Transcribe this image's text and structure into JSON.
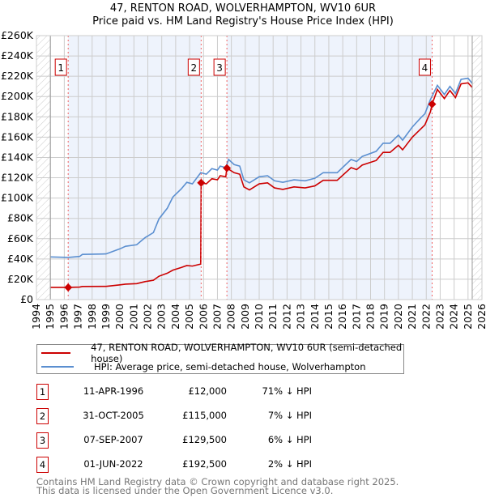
{
  "title": "47, RENTON ROAD, WOLVERHAMPTON, WV10 6UR",
  "subtitle": "Price paid vs. HM Land Registry's House Price Index (HPI)",
  "colors": {
    "price": "#cc0000",
    "hpi": "#5b8fd0",
    "band": "#eef3fc",
    "grid": "#cccccc",
    "marker": "#cc0000"
  },
  "legend": {
    "price": "47, RENTON ROAD, WOLVERHAMPTON, WV10 6UR (semi-detached house)",
    "hpi": "HPI: Average price, semi-detached house, Wolverhampton"
  },
  "sales": [
    {
      "num": "1",
      "date": "11-APR-1996",
      "price": "£12,000",
      "hpi": "71% ↓ HPI",
      "x": 1996.28,
      "y": 12
    },
    {
      "num": "2",
      "date": "31-OCT-2005",
      "price": "£115,000",
      "hpi": "7% ↓ HPI",
      "x": 2005.83,
      "y": 115
    },
    {
      "num": "3",
      "date": "07-SEP-2007",
      "price": "£129,500",
      "hpi": "6% ↓ HPI",
      "x": 2007.68,
      "y": 129.5
    },
    {
      "num": "4",
      "date": "01-JUN-2022",
      "price": "£192,500",
      "hpi": "2% ↓ HPI",
      "x": 2022.42,
      "y": 192.5
    }
  ],
  "footer": [
    "Contains HM Land Registry data © Crown copyright and database right 2025.",
    "This data is licensed under the Open Government Licence v3.0."
  ],
  "chart_data": {
    "type": "line",
    "xlim": [
      1994,
      2026
    ],
    "ylim": [
      0,
      260
    ],
    "ylabel_unit": "£K",
    "yticks": [
      "£0",
      "£20K",
      "£40K",
      "£60K",
      "£80K",
      "£100K",
      "£120K",
      "£140K",
      "£160K",
      "£180K",
      "£200K",
      "£220K",
      "£240K",
      "£260K"
    ],
    "xticks": [
      "1994",
      "1995",
      "1996",
      "1997",
      "1998",
      "1999",
      "2000",
      "2001",
      "2002",
      "2003",
      "2004",
      "2005",
      "2006",
      "2007",
      "2008",
      "2009",
      "2010",
      "2011",
      "2012",
      "2013",
      "2014",
      "2015",
      "2016",
      "2017",
      "2018",
      "2019",
      "2020",
      "2021",
      "2022",
      "2023",
      "2024",
      "2025",
      "2026"
    ],
    "data_range": [
      1995,
      2025.3
    ],
    "series": [
      {
        "name": "price",
        "points": [
          [
            1995,
            12
          ],
          [
            1996.28,
            12
          ],
          [
            1997.1,
            12.3
          ],
          [
            1997.3,
            12.9
          ],
          [
            1999,
            13
          ],
          [
            2000,
            14.5
          ],
          [
            2000.4,
            15.2
          ],
          [
            2001.2,
            15.7
          ],
          [
            2001.8,
            17.7
          ],
          [
            2002.4,
            19
          ],
          [
            2002.8,
            23
          ],
          [
            2003.4,
            26
          ],
          [
            2003.8,
            29
          ],
          [
            2004.4,
            31.6
          ],
          [
            2004.8,
            33.5
          ],
          [
            2005.2,
            33
          ],
          [
            2005.8,
            35
          ],
          [
            2005.83,
            115
          ],
          [
            2006.2,
            114
          ],
          [
            2006.6,
            119
          ],
          [
            2007,
            118
          ],
          [
            2007.2,
            122
          ],
          [
            2007.6,
            121
          ],
          [
            2007.68,
            129.5
          ],
          [
            2008.2,
            125
          ],
          [
            2008.6,
            123.5
          ],
          [
            2008.9,
            111
          ],
          [
            2009.3,
            108
          ],
          [
            2010,
            114
          ],
          [
            2010.6,
            115
          ],
          [
            2011.1,
            110
          ],
          [
            2011.7,
            108.5
          ],
          [
            2012.5,
            111
          ],
          [
            2013.3,
            110
          ],
          [
            2014,
            112
          ],
          [
            2014.6,
            117.5
          ],
          [
            2015.6,
            117.5
          ],
          [
            2016.6,
            130
          ],
          [
            2017,
            128
          ],
          [
            2017.4,
            132.5
          ],
          [
            2018.4,
            137
          ],
          [
            2018.9,
            145
          ],
          [
            2019.4,
            145
          ],
          [
            2020,
            152
          ],
          [
            2020.3,
            147.5
          ],
          [
            2021,
            160
          ],
          [
            2021.6,
            168
          ],
          [
            2021.9,
            172
          ],
          [
            2022.3,
            185
          ],
          [
            2022.42,
            192.5
          ],
          [
            2022.8,
            207
          ],
          [
            2023.3,
            198
          ],
          [
            2023.7,
            206
          ],
          [
            2024.1,
            199
          ],
          [
            2024.5,
            212.5
          ],
          [
            2025,
            213.5
          ],
          [
            2025.3,
            209
          ]
        ]
      },
      {
        "name": "hpi",
        "points": [
          [
            1995,
            42
          ],
          [
            1996.3,
            41.5
          ],
          [
            1997.1,
            42.5
          ],
          [
            1997.3,
            44.5
          ],
          [
            1999,
            45
          ],
          [
            2000,
            50
          ],
          [
            2000.4,
            52.5
          ],
          [
            2001.2,
            54
          ],
          [
            2001.8,
            61
          ],
          [
            2002.4,
            66
          ],
          [
            2002.8,
            79.5
          ],
          [
            2003.4,
            90
          ],
          [
            2003.8,
            101
          ],
          [
            2004.4,
            109
          ],
          [
            2004.8,
            115.5
          ],
          [
            2005.2,
            114
          ],
          [
            2005.8,
            125
          ],
          [
            2006.2,
            123.5
          ],
          [
            2006.6,
            129
          ],
          [
            2007,
            127.5
          ],
          [
            2007.2,
            131.5
          ],
          [
            2007.6,
            130
          ],
          [
            2007.8,
            138
          ],
          [
            2008.2,
            133
          ],
          [
            2008.6,
            131.5
          ],
          [
            2008.9,
            118
          ],
          [
            2009.3,
            115
          ],
          [
            2010,
            121
          ],
          [
            2010.6,
            122
          ],
          [
            2011.1,
            117
          ],
          [
            2011.7,
            115.5
          ],
          [
            2012.5,
            118
          ],
          [
            2013.3,
            117
          ],
          [
            2014,
            119.5
          ],
          [
            2014.6,
            125
          ],
          [
            2015.6,
            125
          ],
          [
            2016.6,
            138
          ],
          [
            2017,
            136
          ],
          [
            2017.4,
            141
          ],
          [
            2018.4,
            146
          ],
          [
            2018.9,
            154
          ],
          [
            2019.4,
            154
          ],
          [
            2020,
            162
          ],
          [
            2020.3,
            157
          ],
          [
            2021,
            170
          ],
          [
            2021.6,
            179
          ],
          [
            2021.9,
            183
          ],
          [
            2022.3,
            197
          ],
          [
            2022.8,
            211
          ],
          [
            2023.3,
            202
          ],
          [
            2023.7,
            210
          ],
          [
            2024.1,
            203
          ],
          [
            2024.5,
            217
          ],
          [
            2025,
            218
          ],
          [
            2025.3,
            213
          ]
        ]
      }
    ]
  }
}
